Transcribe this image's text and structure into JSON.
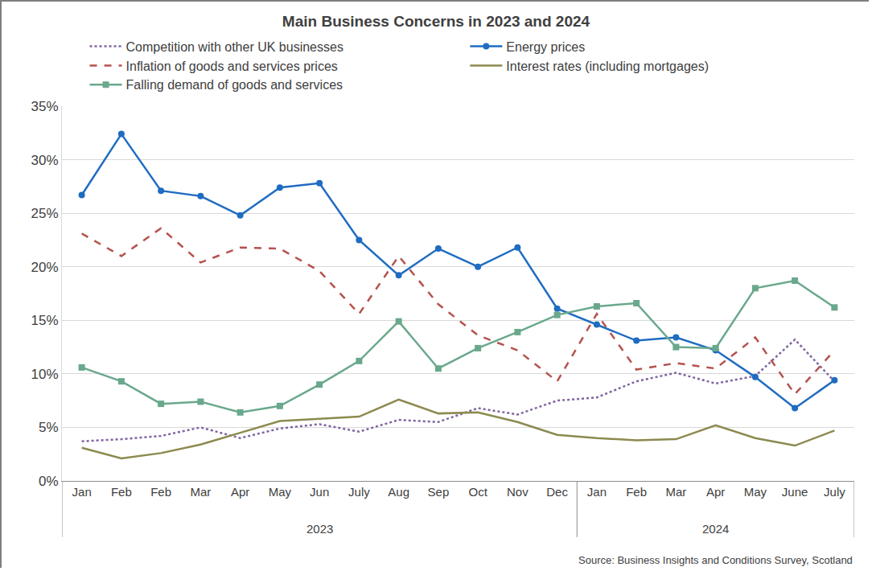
{
  "chart_data": {
    "type": "line",
    "title": "Main Business Concerns in 2023 and 2024",
    "categories": [
      "Jan",
      "Feb",
      "Feb",
      "Mar",
      "Apr",
      "May",
      "Jun",
      "July",
      "Aug",
      "Sep",
      "Oct",
      "Nov",
      "Dec",
      "Jan",
      "Feb",
      "Mar",
      "Apr",
      "May",
      "June",
      "July"
    ],
    "category_groups": [
      "2023",
      "2023",
      "2023",
      "2023",
      "2023",
      "2023",
      "2023",
      "2023",
      "2023",
      "2023",
      "2023",
      "2023",
      "2023",
      "2024",
      "2024",
      "2024",
      "2024",
      "2024",
      "2024",
      "2024"
    ],
    "series": [
      {
        "name": "Competition with other UK businesses",
        "color": "#8064a2",
        "line_style": "dot",
        "values": [
          3.7,
          3.9,
          4.2,
          5.0,
          4.0,
          4.9,
          5.3,
          4.6,
          5.7,
          5.5,
          6.8,
          6.2,
          7.5,
          7.8,
          9.3,
          10.1,
          9.1,
          9.8,
          13.2,
          9.3
        ]
      },
      {
        "name": "Energy prices",
        "color": "#1f6cc1",
        "line_style": "solid",
        "marker": "circle",
        "values": [
          26.7,
          32.4,
          27.1,
          26.6,
          24.8,
          27.4,
          27.8,
          22.5,
          19.2,
          21.7,
          20.0,
          21.8,
          16.1,
          14.6,
          13.1,
          13.4,
          12.2,
          9.7,
          6.8,
          9.4
        ]
      },
      {
        "name": "Inflation of goods and services prices",
        "color": "#b5524e",
        "line_style": "dash",
        "values": [
          23.1,
          21.0,
          23.6,
          20.4,
          21.8,
          21.7,
          19.6,
          15.6,
          21.0,
          16.5,
          13.6,
          12.2,
          9.3,
          15.6,
          10.4,
          11.0,
          10.5,
          13.4,
          8.1,
          12.2
        ]
      },
      {
        "name": "Interest rates (including mortgages)",
        "color": "#8c8a4f",
        "line_style": "solid",
        "values": [
          3.1,
          2.1,
          2.6,
          3.4,
          4.5,
          5.6,
          5.8,
          6.0,
          7.6,
          6.3,
          6.4,
          5.5,
          4.3,
          4.0,
          3.8,
          3.9,
          5.2,
          4.0,
          3.3,
          4.7
        ]
      },
      {
        "name": "Falling demand of goods and services",
        "color": "#6aa88c",
        "line_style": "solid",
        "marker": "square",
        "values": [
          10.6,
          9.3,
          7.2,
          7.4,
          6.4,
          7.0,
          9.0,
          11.2,
          14.9,
          10.5,
          12.4,
          13.9,
          15.5,
          16.3,
          16.6,
          12.5,
          12.4,
          18.0,
          18.7,
          16.2
        ]
      }
    ],
    "ylim": [
      0,
      35
    ],
    "yticks": [
      {
        "value": 0,
        "label": "0%"
      },
      {
        "value": 5,
        "label": "5%"
      },
      {
        "value": 10,
        "label": "10%"
      },
      {
        "value": 15,
        "label": "15%"
      },
      {
        "value": 20,
        "label": "20%"
      },
      {
        "value": 25,
        "label": "25%"
      },
      {
        "value": 30,
        "label": "30%"
      },
      {
        "value": 35,
        "label": "35%"
      }
    ],
    "grid": true,
    "legend": "top",
    "annotations": [
      "Source: Business Insights and Conditions Survey, Scotland"
    ]
  }
}
